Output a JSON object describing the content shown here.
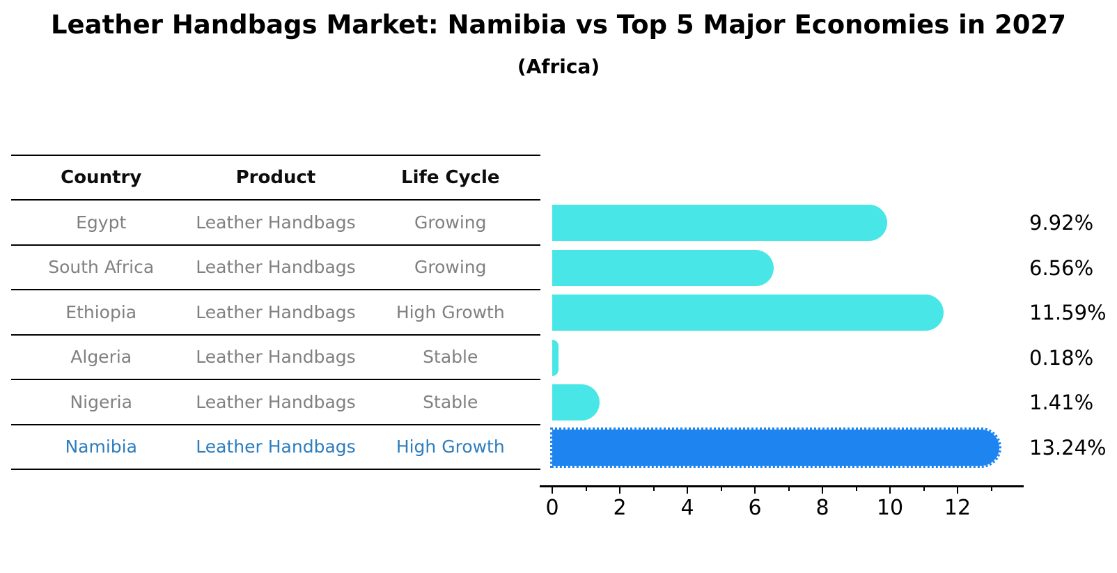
{
  "title": "Leather Handbags Market: Namibia vs Top 5 Major Economies in 2027",
  "subtitle": "(Africa)",
  "colors": {
    "bar_default": "#48e6e6",
    "bar_highlight": "#1e85f0",
    "highlight_text": "#2e7dbe",
    "row_text": "#808080",
    "header_text": "#0d0d0d"
  },
  "table": {
    "columns": [
      "Country",
      "Product",
      "Life Cycle"
    ],
    "rows": [
      {
        "country": "Egypt",
        "product": "Leather Handbags",
        "life_cycle": "Growing",
        "highlight": false
      },
      {
        "country": "South Africa",
        "product": "Leather Handbags",
        "life_cycle": "Growing",
        "highlight": false
      },
      {
        "country": "Ethiopia",
        "product": "Leather Handbags",
        "life_cycle": "High Growth",
        "highlight": false
      },
      {
        "country": "Algeria",
        "product": "Leather Handbags",
        "life_cycle": "Stable",
        "highlight": false
      },
      {
        "country": "Nigeria",
        "product": "Leather Handbags",
        "life_cycle": "Stable",
        "highlight": false
      },
      {
        "country": "Namibia",
        "product": "Leather Handbags",
        "life_cycle": "High Growth",
        "highlight": true
      }
    ]
  },
  "chart_data": {
    "type": "bar",
    "orientation": "horizontal",
    "title": "Leather Handbags Market: Namibia vs Top 5 Major Economies in 2027 (Africa)",
    "xlabel": "",
    "ylabel": "",
    "categories": [
      "Egypt",
      "South Africa",
      "Ethiopia",
      "Algeria",
      "Nigeria",
      "Namibia"
    ],
    "values": [
      9.92,
      6.56,
      11.59,
      0.18,
      1.41,
      13.24
    ],
    "value_labels": [
      "9.92%",
      "6.56%",
      "11.59%",
      "0.18%",
      "1.41%",
      "13.24%"
    ],
    "highlight_index": 5,
    "xlim": [
      0,
      13.95
    ],
    "x_ticks": [
      0,
      2,
      4,
      6,
      8,
      10,
      12
    ],
    "x_tick_labels": [
      "0",
      "2",
      "4",
      "6",
      "8",
      "10",
      "12"
    ],
    "x_minor_ticks": [
      1,
      3,
      5,
      7,
      9,
      11,
      13
    ],
    "grid": false,
    "legend": false
  }
}
